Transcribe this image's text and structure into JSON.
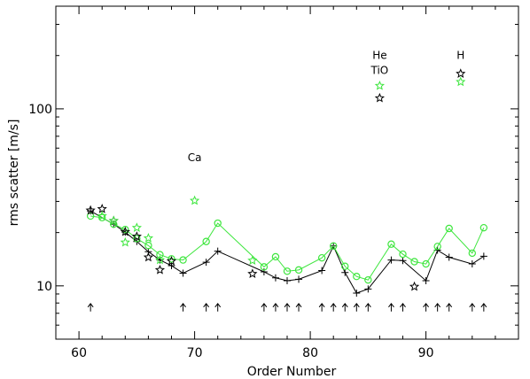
{
  "chart_data": {
    "type": "scatter",
    "xlabel": "Order Number",
    "ylabel": "rms scatter [m/s]",
    "xlim": [
      58,
      98
    ],
    "ylim": [
      5,
      380
    ],
    "y_scale": "log",
    "x_ticks": [
      60,
      70,
      80,
      90
    ],
    "y_ticks": [
      10,
      100
    ],
    "grid": false,
    "colors": {
      "black": "#000000",
      "green": "#3ee63e"
    },
    "series": [
      {
        "style": "black-line-plus",
        "x": [
          61,
          63,
          64,
          65,
          66,
          67,
          68,
          69,
          71,
          72,
          76,
          77,
          78,
          79,
          81,
          82,
          83,
          84,
          85,
          87,
          88,
          90,
          91,
          92,
          94,
          95
        ],
        "y": [
          26.5,
          22.3,
          20.1,
          17.8,
          15.6,
          14.0,
          13.0,
          11.8,
          13.6,
          15.7,
          12.0,
          11.1,
          10.7,
          10.9,
          12.2,
          16.8,
          11.9,
          9.1,
          9.6,
          14.0,
          13.9,
          10.7,
          15.9,
          14.5,
          13.3,
          14.7
        ]
      },
      {
        "style": "green-line-circle",
        "x": [
          61,
          62,
          63,
          64,
          65,
          66,
          67,
          68,
          69,
          71,
          72,
          76,
          77,
          78,
          79,
          81,
          82,
          83,
          84,
          85,
          87,
          88,
          89,
          90,
          91,
          92,
          94,
          95
        ],
        "y": [
          24.8,
          24.3,
          22.3,
          20.8,
          18.5,
          16.9,
          15.0,
          14.2,
          14.0,
          17.8,
          22.6,
          12.8,
          14.6,
          12.1,
          12.3,
          14.4,
          16.8,
          12.9,
          11.3,
          10.8,
          17.2,
          15.1,
          13.7,
          13.3,
          16.7,
          21.1,
          15.3,
          21.3
        ]
      },
      {
        "style": "black-star",
        "x": [
          61,
          62,
          63,
          64,
          65,
          66,
          67,
          68,
          75,
          86,
          89,
          93
        ],
        "y": [
          26.7,
          27.2,
          23.3,
          20.2,
          19.0,
          14.5,
          12.3,
          13.8,
          11.7,
          115,
          9.9,
          158
        ]
      },
      {
        "style": "green-star",
        "x": [
          62,
          63,
          64,
          65,
          66,
          67,
          70,
          75,
          86,
          93
        ],
        "y": [
          24.8,
          23.3,
          17.6,
          21.3,
          18.6,
          14.0,
          30.3,
          13.9,
          135,
          142
        ]
      }
    ],
    "arrows": {
      "y": 7.5,
      "x": [
        61,
        69,
        71,
        72,
        76,
        77,
        78,
        79,
        81,
        82,
        83,
        84,
        85,
        87,
        88,
        90,
        91,
        92,
        94,
        95
      ]
    },
    "annotations": [
      {
        "text": "Ca",
        "x": 70.0,
        "y": 53
      },
      {
        "text": "He",
        "x": 86.0,
        "y": 200
      },
      {
        "text": "TiO",
        "x": 86.0,
        "y": 165
      },
      {
        "text": "H",
        "x": 93.0,
        "y": 200
      }
    ]
  }
}
